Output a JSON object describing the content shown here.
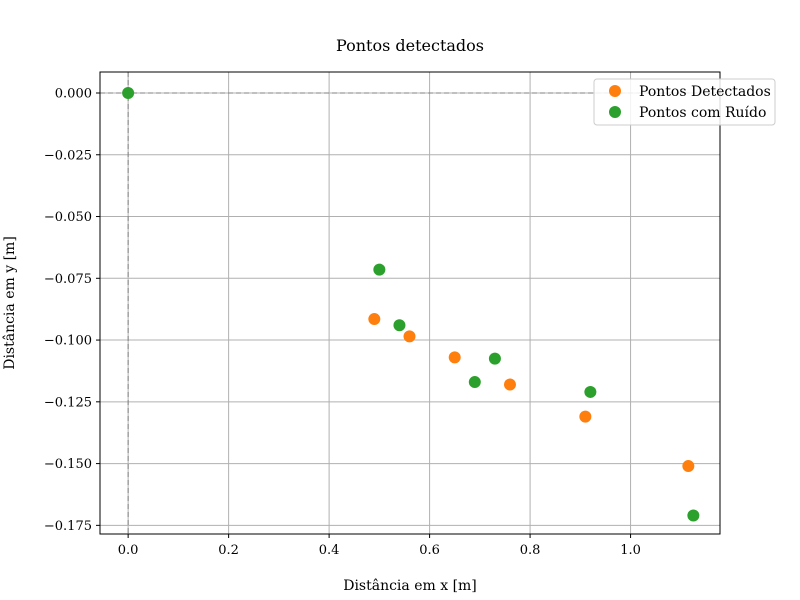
{
  "chart_data": {
    "type": "scatter",
    "title": "Pontos detectados",
    "xlabel": "Distância em x [m]",
    "ylabel": "Distância em y [m]",
    "xlim": [
      -0.056,
      1.178
    ],
    "ylim": [
      -0.1785,
      0.0085
    ],
    "grid": true,
    "legend_position": "top-right",
    "x_ticks": [
      0.0,
      0.2,
      0.4,
      0.6,
      0.8,
      1.0
    ],
    "x_tick_labels": [
      "0.0",
      "0.2",
      "0.4",
      "0.6",
      "0.8",
      "1.0"
    ],
    "y_ticks": [
      0.0,
      -0.025,
      -0.05,
      -0.075,
      -0.1,
      -0.125,
      -0.15,
      -0.175
    ],
    "y_tick_labels": [
      "0.000",
      "−0.025",
      "−0.050",
      "−0.075",
      "−0.100",
      "−0.125",
      "−0.150",
      "−0.175"
    ],
    "reference_lines": {
      "x": 0.0,
      "y": 0.0
    },
    "series": [
      {
        "name": "Pontos Detectados",
        "color": "#ff7f0e",
        "points": [
          {
            "x": 0.49,
            "y": -0.0915
          },
          {
            "x": 0.56,
            "y": -0.0985
          },
          {
            "x": 0.65,
            "y": -0.107
          },
          {
            "x": 0.76,
            "y": -0.118
          },
          {
            "x": 0.91,
            "y": -0.131
          },
          {
            "x": 1.115,
            "y": -0.151
          }
        ]
      },
      {
        "name": "Pontos com Ruído",
        "color": "#2ca02c",
        "points": [
          {
            "x": 0.0,
            "y": 0.0
          },
          {
            "x": 0.5,
            "y": -0.0715
          },
          {
            "x": 0.54,
            "y": -0.094
          },
          {
            "x": 0.69,
            "y": -0.117
          },
          {
            "x": 0.73,
            "y": -0.1075
          },
          {
            "x": 0.92,
            "y": -0.121
          },
          {
            "x": 1.125,
            "y": -0.171
          }
        ]
      }
    ]
  }
}
